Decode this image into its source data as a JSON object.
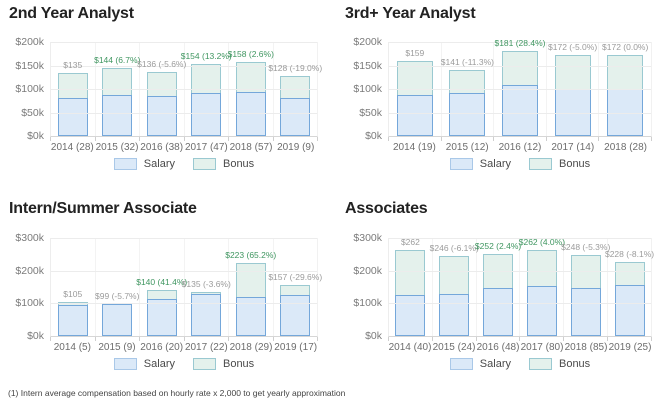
{
  "legend": {
    "salary": "Salary",
    "bonus": "Bonus"
  },
  "footnote": "(1) Intern average compensation based on hourly rate x 2,000 to get yearly approximation",
  "colors": {
    "salary_fill": "#dbe9f8",
    "salary_border": "#74a7da",
    "salary_border_light": "#a9c8e8",
    "bonus_fill": "#e4f1ec",
    "bonus_border": "#9ac9d1",
    "positive_label": "#3f9660",
    "negative_label": "#9b9b9b",
    "grid_line": "#ececec",
    "axis_line": "#d6d6d6",
    "axis_text": "#7b7b7b",
    "category_text": "#6d6d6d",
    "title_text": "#222222",
    "legend_text": "#4a4a4a",
    "footnote_text": "#444444"
  },
  "chart_data": [
    {
      "type": "bar",
      "stacked": true,
      "title": "2nd Year Analyst",
      "ylim": [
        0,
        200
      ],
      "yticks": [
        "$200k",
        "$150k",
        "$100k",
        "$50k",
        "$0k"
      ],
      "grid": true,
      "legend_position": "bottom",
      "categories": [
        "2014 (28)",
        "2015 (32)",
        "2016 (38)",
        "2017 (47)",
        "2018 (57)",
        "2019 (9)"
      ],
      "series": [
        {
          "name": "Salary",
          "values": [
            80,
            88,
            86,
            92,
            94,
            80
          ]
        },
        {
          "name": "Bonus",
          "values": [
            55,
            56,
            50,
            62,
            64,
            48
          ]
        }
      ],
      "totals": [
        135,
        144,
        136,
        154,
        158,
        128
      ],
      "bar_labels": [
        {
          "text": "$135",
          "color": "gray"
        },
        {
          "text": "$144 (6.7%)",
          "color": "green"
        },
        {
          "text": "$136 (-5.6%)",
          "color": "gray"
        },
        {
          "text": "$154 (13.2%)",
          "color": "green"
        },
        {
          "text": "$158 (2.6%)",
          "color": "green"
        },
        {
          "text": "$128 (-19.0%)",
          "color": "gray"
        }
      ]
    },
    {
      "type": "bar",
      "stacked": true,
      "title": "3rd+ Year Analyst",
      "ylim": [
        0,
        200
      ],
      "yticks": [
        "$200k",
        "$150k",
        "$100k",
        "$50k",
        "$0k"
      ],
      "grid": true,
      "legend_position": "bottom",
      "categories": [
        "2014 (19)",
        "2015 (12)",
        "2016 (12)",
        "2017 (14)",
        "2018 (28)"
      ],
      "series": [
        {
          "name": "Salary",
          "values": [
            87,
            92,
            108,
            99,
            100
          ]
        },
        {
          "name": "Bonus",
          "values": [
            72,
            49,
            73,
            73,
            72
          ]
        }
      ],
      "totals": [
        159,
        141,
        181,
        172,
        172
      ],
      "bar_labels": [
        {
          "text": "$159",
          "color": "gray"
        },
        {
          "text": "$141 (-11.3%)",
          "color": "gray"
        },
        {
          "text": "$181 (28.4%)",
          "color": "green"
        },
        {
          "text": "$172 (-5.0%)",
          "color": "gray"
        },
        {
          "text": "$172 (0.0%)",
          "color": "gray"
        }
      ]
    },
    {
      "type": "bar",
      "stacked": true,
      "title": "Intern/Summer Associate",
      "ylim": [
        0,
        300
      ],
      "yticks": [
        "$300k",
        "$200k",
        "$100k",
        "$0k"
      ],
      "grid": true,
      "legend_position": "bottom",
      "categories": [
        "2014 (5)",
        "2015 (9)",
        "2016 (20)",
        "2017 (22)",
        "2018 (29)",
        "2019 (17)"
      ],
      "series": [
        {
          "name": "Salary",
          "values": [
            95,
            99,
            112,
            128,
            120,
            125
          ]
        },
        {
          "name": "Bonus",
          "values": [
            10,
            0,
            28,
            7,
            103,
            32
          ]
        }
      ],
      "totals": [
        105,
        99,
        140,
        135,
        223,
        157
      ],
      "bar_labels": [
        {
          "text": "$105",
          "color": "gray"
        },
        {
          "text": "$99 (-5.7%)",
          "color": "gray"
        },
        {
          "text": "$140 (41.4%)",
          "color": "green"
        },
        {
          "text": "$135 (-3.6%)",
          "color": "gray"
        },
        {
          "text": "$223 (65.2%)",
          "color": "green"
        },
        {
          "text": "$157 (-29.6%)",
          "color": "gray"
        }
      ]
    },
    {
      "type": "bar",
      "stacked": true,
      "title": "Associates",
      "ylim": [
        0,
        300
      ],
      "yticks": [
        "$300k",
        "$200k",
        "$100k",
        "$0k"
      ],
      "grid": true,
      "legend_position": "bottom",
      "categories": [
        "2014 (40)",
        "2015 (24)",
        "2016 (48)",
        "2017 (80)",
        "2018 (85)",
        "2019 (25)"
      ],
      "series": [
        {
          "name": "Salary",
          "values": [
            125,
            130,
            148,
            153,
            147,
            156
          ]
        },
        {
          "name": "Bonus",
          "values": [
            137,
            116,
            104,
            109,
            101,
            72
          ]
        }
      ],
      "totals": [
        262,
        246,
        252,
        262,
        248,
        228
      ],
      "bar_labels": [
        {
          "text": "$262",
          "color": "gray"
        },
        {
          "text": "$246 (-6.1%)",
          "color": "gray"
        },
        {
          "text": "$252 (2.4%)",
          "color": "green"
        },
        {
          "text": "$262 (4.0%)",
          "color": "green"
        },
        {
          "text": "$248 (-5.3%)",
          "color": "gray"
        },
        {
          "text": "$228 (-8.1%)",
          "color": "gray"
        }
      ]
    }
  ]
}
